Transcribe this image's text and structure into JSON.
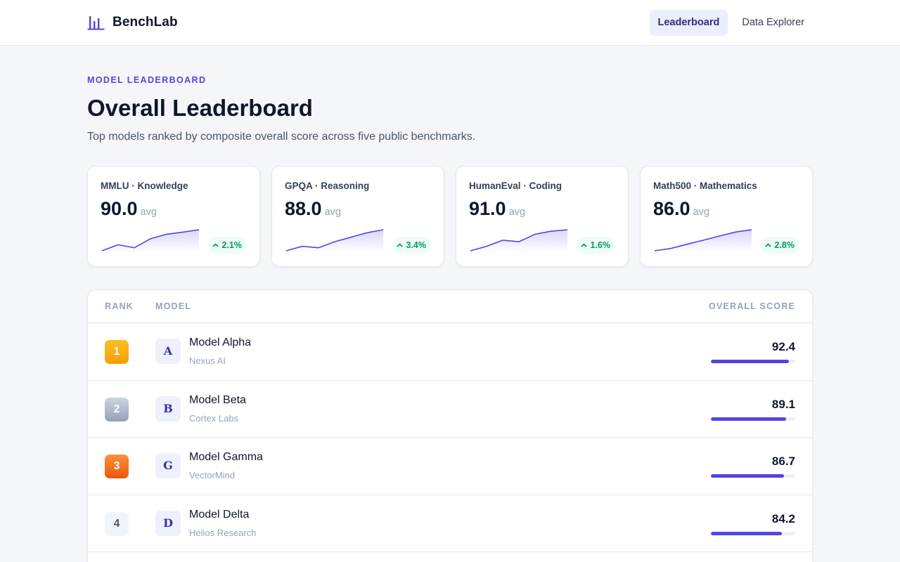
{
  "app": {
    "name": "BenchLab"
  },
  "nav": {
    "items": [
      {
        "label": "Leaderboard",
        "active": true
      },
      {
        "label": "Data Explorer",
        "active": false
      }
    ]
  },
  "header": {
    "eyebrow": "MODEL LEADERBOARD",
    "title": "Overall Leaderboard",
    "subtitle": "Top models ranked by composite overall score across five public benchmarks."
  },
  "benchmarks": [
    {
      "label": "MMLU · Knowledge",
      "value": "90.0",
      "unit": "avg",
      "delta": "2.1%",
      "trend": [
        84,
        86,
        85,
        88,
        89.5,
        90.2,
        91
      ]
    },
    {
      "label": "GPQA · Reasoning",
      "value": "88.0",
      "unit": "avg",
      "delta": "3.4%",
      "trend": [
        82,
        83.5,
        83,
        85,
        86.5,
        88,
        89
      ]
    },
    {
      "label": "HumanEval · Coding",
      "value": "91.0",
      "unit": "avg",
      "delta": "1.6%",
      "trend": [
        85,
        86.5,
        88.5,
        88,
        90.5,
        91.5,
        92
      ]
    },
    {
      "label": "Math500 · Mathematics",
      "value": "86.0",
      "unit": "avg",
      "delta": "2.8%",
      "trend": [
        80,
        81,
        82.8,
        84.5,
        86.3,
        88,
        89
      ]
    }
  ],
  "colors": {
    "accent": "#4f46e5",
    "positive": "#059669",
    "gold": "#f59e0b",
    "silver": "#94a3b8",
    "bronze": "#ea580c"
  },
  "table": {
    "columns": {
      "rank": "RANK",
      "model": "MODEL",
      "score": "OVERALL SCORE"
    },
    "score_max": 100,
    "rows": [
      {
        "rank": "1",
        "initial": "A",
        "model": "Model Alpha",
        "org": "Nexus AI",
        "score": "92.4"
      },
      {
        "rank": "2",
        "initial": "B",
        "model": "Model Beta",
        "org": "Cortex Labs",
        "score": "89.1"
      },
      {
        "rank": "3",
        "initial": "G",
        "model": "Model Gamma",
        "org": "VectorMind",
        "score": "86.7"
      },
      {
        "rank": "4",
        "initial": "D",
        "model": "Model Delta",
        "org": "Helios Research",
        "score": "84.2"
      }
    ]
  }
}
